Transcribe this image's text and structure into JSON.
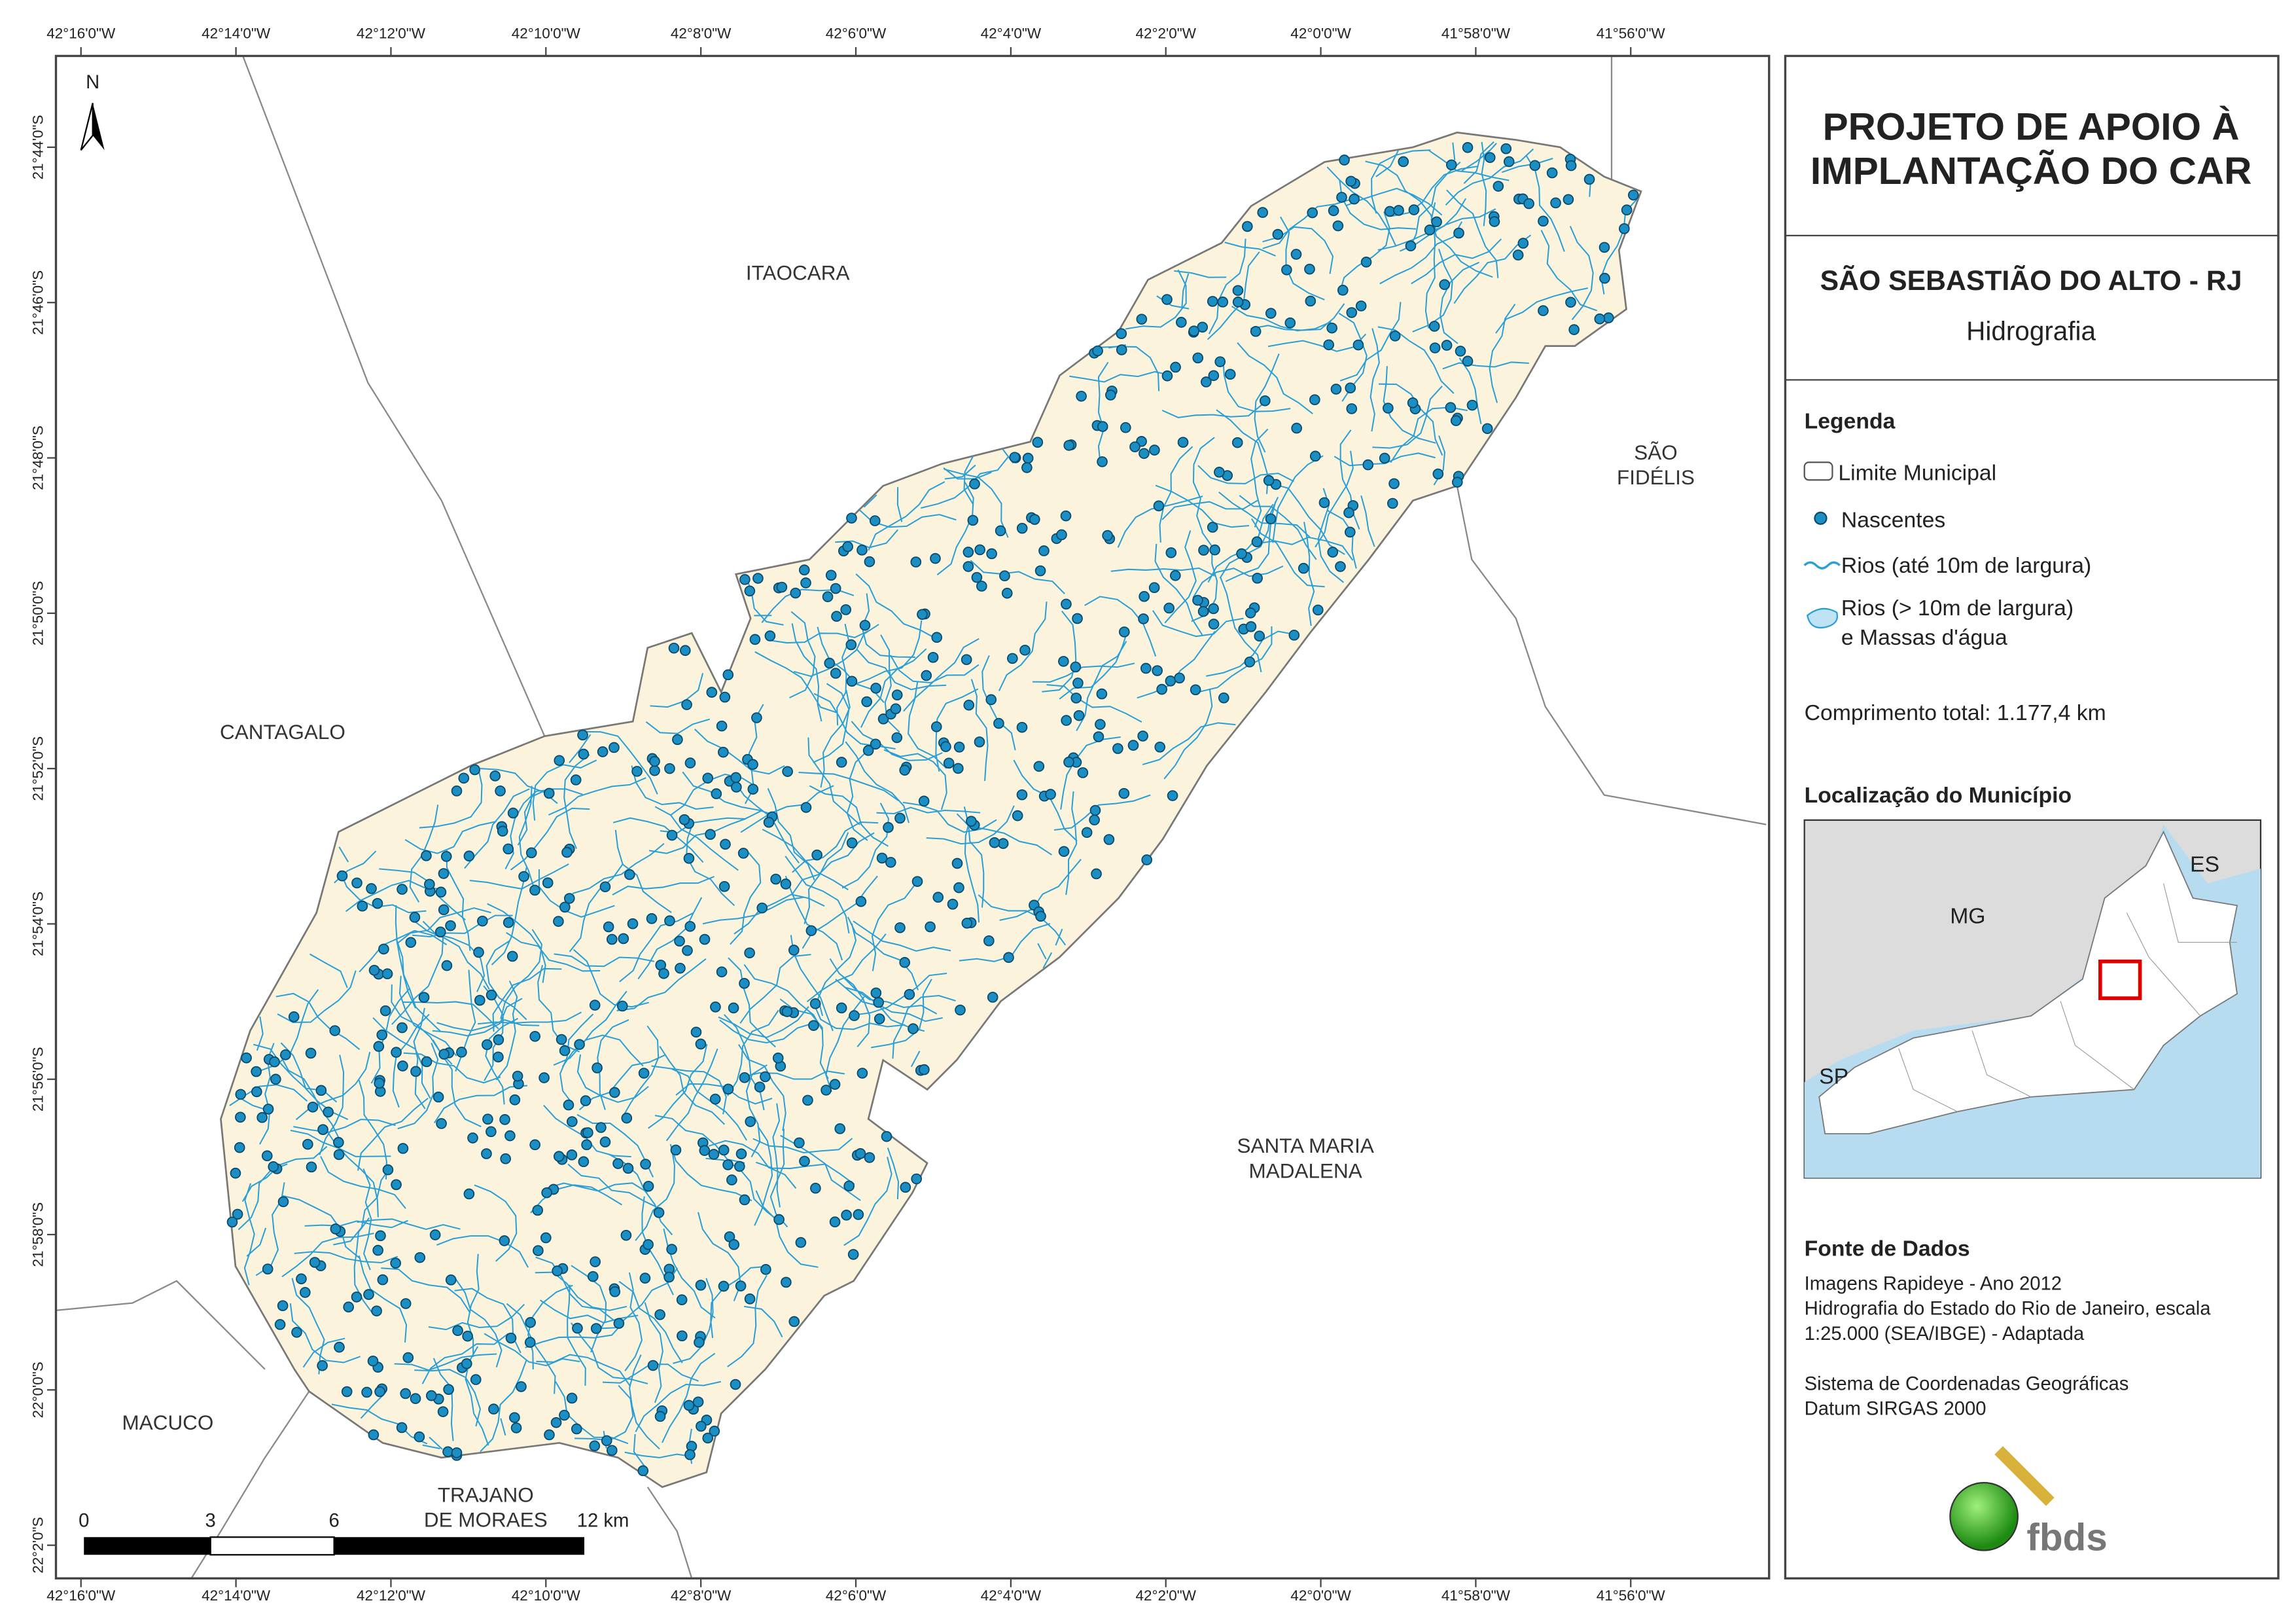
{
  "map": {
    "x_labels": [
      "42°16'0\"W",
      "42°14'0\"W",
      "42°12'0\"W",
      "42°10'0\"W",
      "42°8'0\"W",
      "42°6'0\"W",
      "42°4'0\"W",
      "42°2'0\"W",
      "42°0'0\"W",
      "41°58'0\"W",
      "41°56'0\"W"
    ],
    "y_labels": [
      "21°44'0\"S",
      "21°46'0\"S",
      "21°48'0\"S",
      "21°50'0\"S",
      "21°52'0\"S",
      "21°54'0\"S",
      "21°56'0\"S",
      "21°58'0\"S",
      "22°0'0\"S",
      "22°2'0\"S"
    ],
    "places": {
      "itaocara": [
        "ITAOCARA"
      ],
      "sao_fidelis": [
        "SÃO",
        "FIDÉLIS"
      ],
      "cantagalo": [
        "CANTAGALO"
      ],
      "santa_maria": [
        "SANTA MARIA",
        "MADALENA"
      ],
      "macuco": [
        "MACUCO"
      ],
      "trajano": [
        "TRAJANO",
        "DE MORAES"
      ]
    },
    "north": "N",
    "scale_labels": [
      "0",
      "3",
      "6",
      "12 km"
    ]
  },
  "panel": {
    "title": [
      "PROJETO DE APOIO À",
      "IMPLANTAÇÃO DO CAR"
    ],
    "municipality": "SÃO SEBASTIÃO DO ALTO - RJ",
    "theme": "Hidrografia",
    "legend_title": "Legenda",
    "legend": {
      "boundary": "Limite Municipal",
      "springs": "Nascentes",
      "rivers_small": "Rios (até 10m de largura)",
      "rivers_large": [
        "Rios (> 10m de largura)",
        "e Massas d'água"
      ]
    },
    "total_length": "Comprimento total:  1.177,4 km",
    "location_title": "Localização do Município",
    "inset_labels": {
      "es": "ES",
      "mg": "MG",
      "sp": "SP"
    },
    "sources_title": "Fonte de Dados",
    "sources": [
      "Imagens Rapideye - Ano 2012",
      "Hidrografia do Estado do Rio de Janeiro, escala",
      "1:25.000 (SEA/IBGE) - Adaptada"
    ],
    "crs": [
      "Sistema de Coordenadas Geográficas",
      "Datum SIRGAS 2000"
    ],
    "logo": "fbds"
  }
}
